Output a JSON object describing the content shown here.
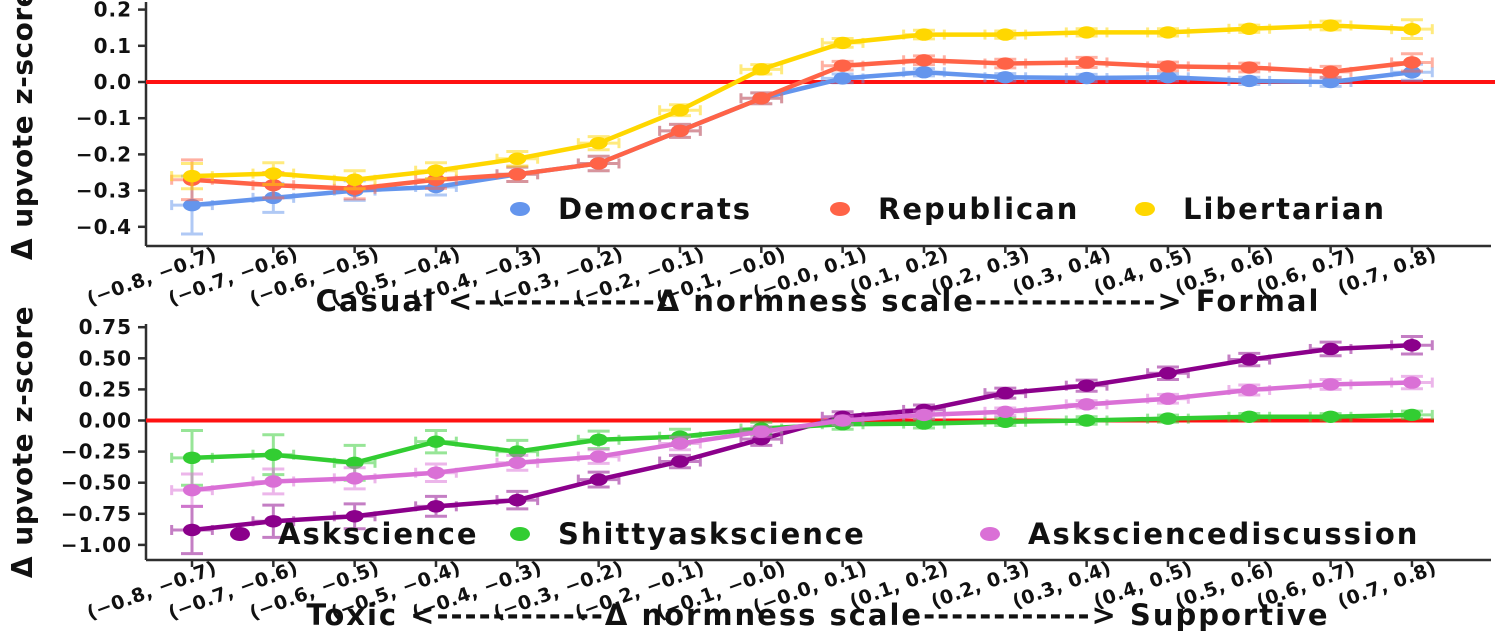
{
  "figure_text": {
    "top_xlabel": "Casual <-------------Δ normness scale-------------> Formal",
    "bottom_xlabel": "Toxic <------------Δ normness scale------------> Supportive",
    "ylabel": "Δ upvote z-score"
  },
  "colors": {
    "zero_line": "#ff1111",
    "axis": "#2f2f2f",
    "text": "#111111",
    "democrats": "#6495ED",
    "republican": "#FF6347",
    "libertarian": "#FFD700",
    "askscience": "#8B008B",
    "shittyaskscience": "#32CD32",
    "asksciencediscussion": "#DA70D6"
  },
  "chart_data": [
    {
      "type": "line",
      "title": "",
      "xlabel": "Casual <-------------Δ normness scale-------------> Formal",
      "ylabel": "Δ upvote z-score",
      "grid": false,
      "legend_position": "inside-bottom",
      "zero_line": 0.0,
      "ylim": [
        -0.45,
        0.23
      ],
      "yticks": [
        0.2,
        0.1,
        0.0,
        -0.1,
        -0.2,
        -0.3,
        -0.4
      ],
      "ytick_labels": [
        "0.2",
        "0.1",
        "0.0",
        "−0.1",
        "−0.2",
        "−0.3",
        "−0.4"
      ],
      "categories": [
        "(−0.8, −0.7)",
        "(−0.7, −0.6)",
        "(−0.6, −0.5)",
        "(−0.5, −0.4)",
        "(−0.4, −0.3)",
        "(−0.3, −0.2)",
        "(−0.2, −0.1)",
        "(−0.1, −0.0)",
        "(−0.0, 0.1)",
        "(0.1, 0.2)",
        "(0.2, 0.3)",
        "(0.3, 0.4)",
        "(0.4, 0.5)",
        "(0.5, 0.6)",
        "(0.6, 0.7)",
        "(0.7, 0.8)"
      ],
      "xerr": 0.025,
      "series": [
        {
          "name": "Democrats",
          "color": "#6495ED",
          "values": [
            -0.34,
            -0.32,
            -0.3,
            -0.29,
            -0.255,
            -0.225,
            -0.135,
            -0.045,
            0.01,
            0.027,
            0.013,
            0.011,
            0.013,
            0.003,
            0.0,
            0.027
          ],
          "yerr": [
            0.08,
            0.04,
            0.027,
            0.022,
            0.02,
            0.02,
            0.018,
            0.015,
            0.012,
            0.01,
            0.01,
            0.01,
            0.01,
            0.01,
            0.012,
            0.022
          ]
        },
        {
          "name": "Republican",
          "color": "#FF6347",
          "values": [
            -0.27,
            -0.285,
            -0.295,
            -0.27,
            -0.255,
            -0.225,
            -0.135,
            -0.045,
            0.045,
            0.06,
            0.051,
            0.054,
            0.043,
            0.04,
            0.028,
            0.054
          ],
          "yerr": [
            0.055,
            0.035,
            0.028,
            0.024,
            0.02,
            0.02,
            0.018,
            0.015,
            0.012,
            0.012,
            0.012,
            0.014,
            0.012,
            0.012,
            0.015,
            0.024
          ]
        },
        {
          "name": "Libertarian",
          "color": "#FFD700",
          "values": [
            -0.26,
            -0.253,
            -0.27,
            -0.245,
            -0.212,
            -0.169,
            -0.078,
            0.035,
            0.108,
            0.131,
            0.131,
            0.137,
            0.137,
            0.147,
            0.156,
            0.146
          ],
          "yerr": [
            0.035,
            0.03,
            0.025,
            0.022,
            0.02,
            0.018,
            0.015,
            0.013,
            0.012,
            0.012,
            0.01,
            0.01,
            0.01,
            0.01,
            0.012,
            0.026
          ]
        }
      ]
    },
    {
      "type": "line",
      "title": "",
      "xlabel": "Toxic <------------Δ normness scale------------> Supportive",
      "ylabel": "Δ upvote z-score",
      "grid": false,
      "legend_position": "inside-bottom",
      "zero_line": 0.0,
      "ylim": [
        -1.11,
        0.81
      ],
      "yticks": [
        0.75,
        0.5,
        0.25,
        0.0,
        -0.25,
        -0.5,
        -0.75,
        -1.0
      ],
      "ytick_labels": [
        "0.75",
        "0.50",
        "0.25",
        "0.00",
        "−0.25",
        "−0.50",
        "−0.75",
        "−1.00"
      ],
      "categories": [
        "(−0.8, −0.7)",
        "(−0.7, −0.6)",
        "(−0.6, −0.5)",
        "(−0.5, −0.4)",
        "(−0.4, −0.3)",
        "(−0.3, −0.2)",
        "(−0.2, −0.1)",
        "(−0.1, −0.0)",
        "(−0.0, 0.1)",
        "(0.1, 0.2)",
        "(0.2, 0.3)",
        "(0.3, 0.4)",
        "(0.4, 0.5)",
        "(0.5, 0.6)",
        "(0.6, 0.7)",
        "(0.7, 0.8)"
      ],
      "xerr": 0.025,
      "series": [
        {
          "name": "Askscience",
          "color": "#8B008B",
          "values": [
            -0.88,
            -0.81,
            -0.77,
            -0.69,
            -0.64,
            -0.475,
            -0.33,
            -0.15,
            0.03,
            0.085,
            0.22,
            0.28,
            0.38,
            0.49,
            0.575,
            0.605
          ],
          "yerr": [
            0.19,
            0.13,
            0.1,
            0.08,
            0.07,
            0.06,
            0.05,
            0.05,
            0.04,
            0.04,
            0.04,
            0.045,
            0.05,
            0.05,
            0.055,
            0.07
          ]
        },
        {
          "name": "Shittyaskscience",
          "color": "#32CD32",
          "values": [
            -0.3,
            -0.275,
            -0.34,
            -0.17,
            -0.25,
            -0.155,
            -0.13,
            -0.065,
            -0.03,
            -0.025,
            -0.01,
            0.0,
            0.015,
            0.03,
            0.03,
            0.045
          ],
          "yerr": [
            0.22,
            0.16,
            0.14,
            0.09,
            0.09,
            0.07,
            0.06,
            0.05,
            0.04,
            0.035,
            0.03,
            0.03,
            0.028,
            0.026,
            0.025,
            0.03
          ]
        },
        {
          "name": "Asksciencediscussion",
          "color": "#DA70D6",
          "values": [
            -0.56,
            -0.49,
            -0.465,
            -0.42,
            -0.34,
            -0.29,
            -0.185,
            -0.09,
            0.0,
            0.045,
            0.07,
            0.13,
            0.175,
            0.245,
            0.29,
            0.305
          ],
          "yerr": [
            0.13,
            0.1,
            0.085,
            0.07,
            0.06,
            0.055,
            0.05,
            0.04,
            0.035,
            0.03,
            0.03,
            0.03,
            0.035,
            0.04,
            0.04,
            0.05
          ]
        }
      ]
    }
  ]
}
